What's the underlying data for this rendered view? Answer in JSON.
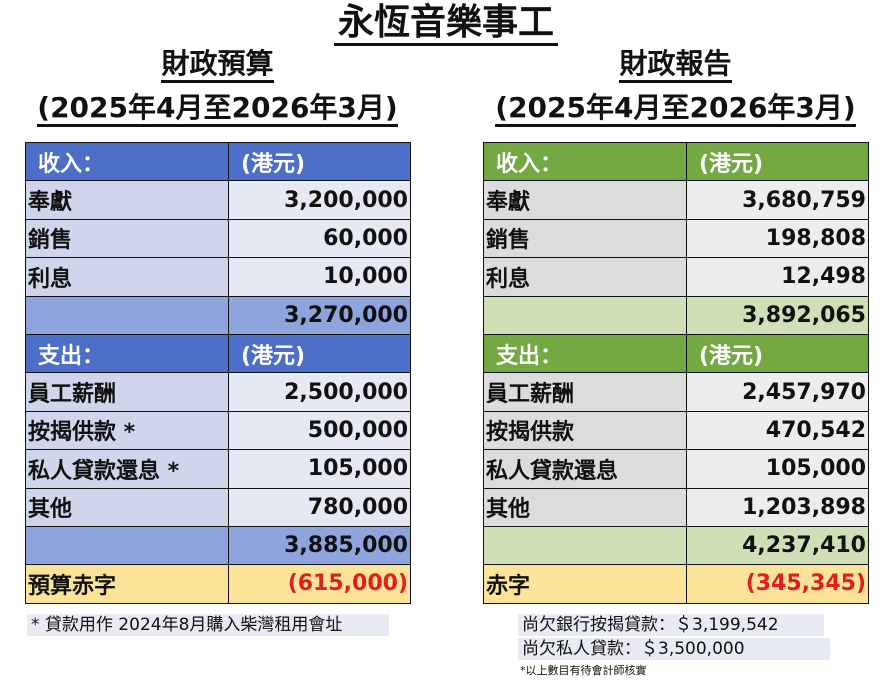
{
  "title": "永恆音樂事工",
  "budget": {
    "heading": "財政預算",
    "period": "(2025年4月至2026年3月)",
    "income_header": [
      "收入：",
      "(港元)"
    ],
    "income_rows": [
      [
        "奉獻",
        "3,200,000"
      ],
      [
        "銷售",
        "60,000"
      ],
      [
        "利息",
        "10,000"
      ]
    ],
    "income_total": "3,270,000",
    "expense_header": [
      "支出：",
      "(港元)"
    ],
    "expense_rows": [
      [
        "員工薪酬",
        "2,500,000"
      ],
      [
        "按揭供款 *",
        "500,000"
      ],
      [
        "私人貸款還息 *",
        "105,000"
      ],
      [
        "其他",
        "780,000"
      ]
    ],
    "expense_total": "3,885,000",
    "deficit_label": "預算赤字",
    "deficit_value": "(615,000)",
    "footnote": "* 貸款用作 2024年8月購入柴灣租用會址"
  },
  "report": {
    "heading": "財政報告",
    "period": "(2025年4月至2026年3月)",
    "income_header": [
      "收入：",
      "(港元)"
    ],
    "income_rows": [
      [
        "奉獻",
        "3,680,759"
      ],
      [
        "銷售",
        "198,808"
      ],
      [
        "利息",
        "12,498"
      ]
    ],
    "income_total": "3,892,065",
    "expense_header": [
      "支出：",
      "(港元)"
    ],
    "expense_rows": [
      [
        "員工薪酬",
        "2,457,970"
      ],
      [
        "按揭供款",
        "470,542"
      ],
      [
        "私人貸款還息",
        "105,000"
      ],
      [
        "其他",
        "1,203,898"
      ]
    ],
    "expense_total": "4,237,410",
    "deficit_label": "赤字",
    "deficit_value": "(345,345)",
    "note_bank_loan": "尚欠銀行按揭貸款：＄3,199,542",
    "note_private_loan": "尚欠私人貸款：＄3,500,000",
    "note_audit": "*以上數目有待會計師核實"
  },
  "colors": {
    "budget_header": "#4e6fc7",
    "report_header": "#74a843",
    "deficit_bg": "#fbe49a",
    "deficit_text": "#e02020"
  }
}
